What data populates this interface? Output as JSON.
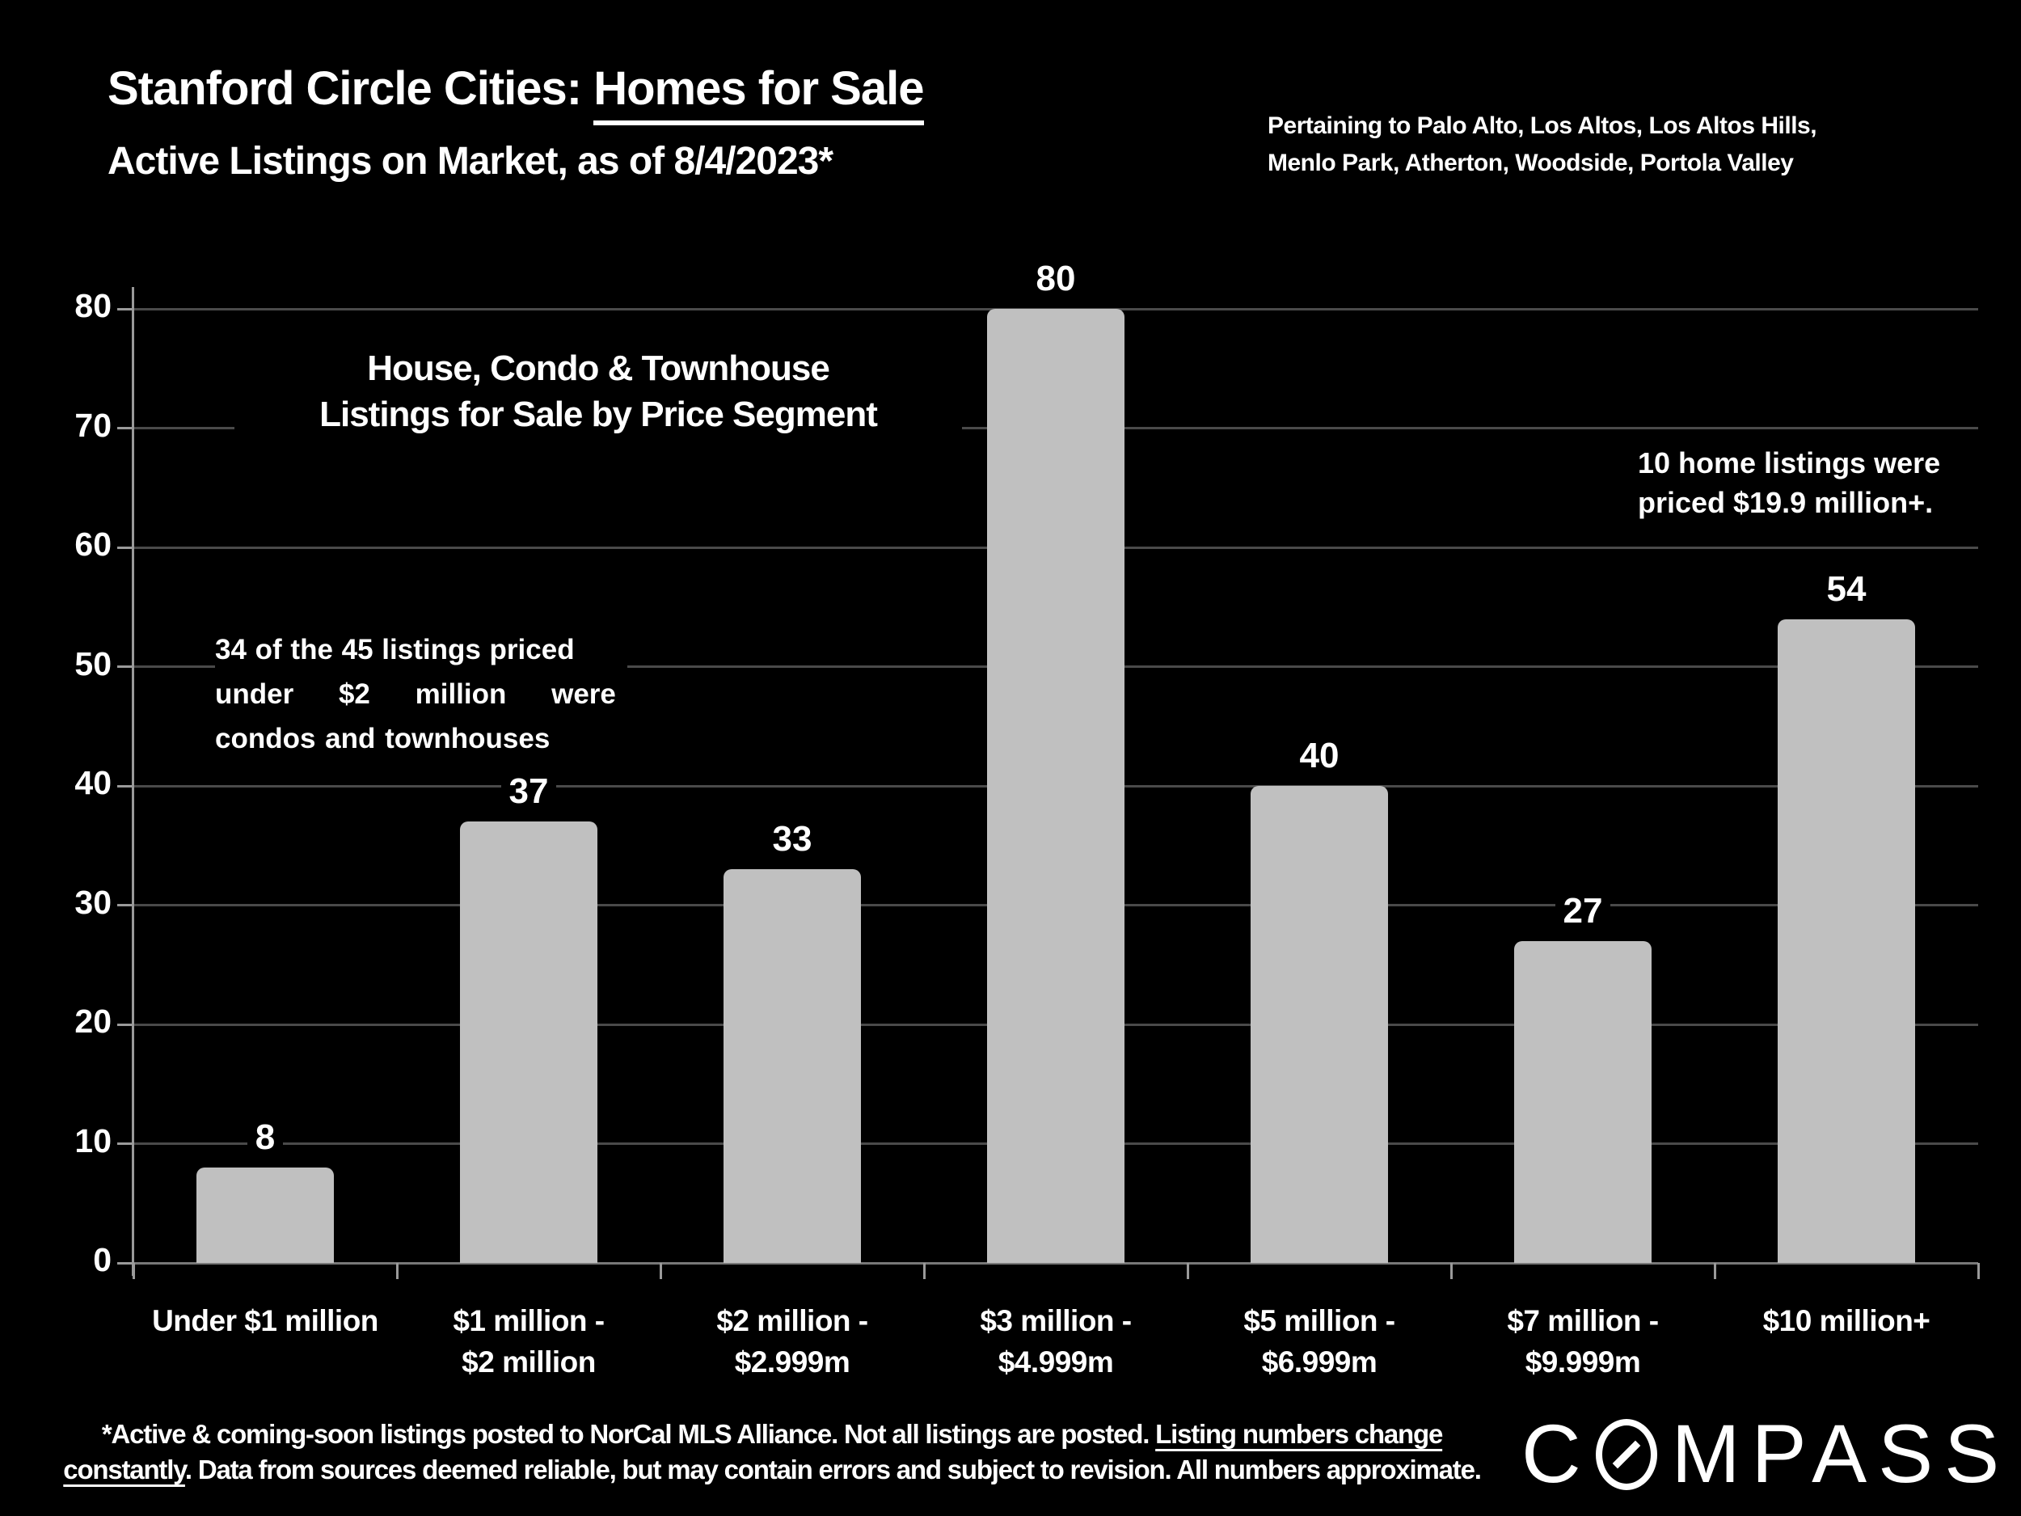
{
  "header": {
    "title_prefix": "Stanford Circle Cities: ",
    "title_emph": "Homes for Sale",
    "subtitle": "Active Listings on Market, as of 8/4/2023*",
    "region_note_line1": "Pertaining to Palo Alto, Los Altos, Los Altos Hills,",
    "region_note_line2": "Menlo Park, Atherton, Woodside, Portola Valley"
  },
  "chart_data": {
    "type": "bar",
    "title": "House, Condo & Townhouse Listings for Sale by Price Segment",
    "title_lines": [
      "House, Condo & Townhouse",
      "Listings for Sale by Price Segment"
    ],
    "categories": [
      "Under $1 million",
      "$1 million - $2 million",
      "$2 million - $2.999m",
      "$3 million - $4.999m",
      "$5 million - $6.999m",
      "$7 million - $9.999m",
      "$10 million+"
    ],
    "category_lines": [
      [
        "Under $1 million"
      ],
      [
        "$1 million -",
        "$2 million"
      ],
      [
        "$2 million -",
        "$2.999m"
      ],
      [
        "$3 million -",
        "$4.999m"
      ],
      [
        "$5 million -",
        "$6.999m"
      ],
      [
        "$7 million -",
        "$9.999m"
      ],
      [
        "$10 million+"
      ]
    ],
    "values": [
      8,
      37,
      33,
      80,
      40,
      27,
      54
    ],
    "yticks": [
      0,
      10,
      20,
      30,
      40,
      50,
      60,
      70,
      80
    ],
    "ylim": [
      0,
      80
    ],
    "xlabel": "",
    "ylabel": "",
    "grid": true,
    "legend": false
  },
  "annotations": {
    "under2m_lines": [
      "34 of the 45 listings priced",
      "under $2 million were",
      "condos and townhouses"
    ],
    "tenplus_lines": [
      "10 home listings were",
      "priced $19.9 million+."
    ]
  },
  "footer": {
    "part1": "*Active & coming-soon listings posted to NorCal MLS Alliance. Not all listings are posted. ",
    "part2_underlined": "Listing numbers change constantly",
    "part3": ". Data from sources deemed reliable, but may contain errors and subject to revision. All numbers approximate."
  },
  "logo": {
    "prefix": "C",
    "suffix": "MPASS",
    "name": "COMPASS"
  },
  "colors": {
    "background": "#000000",
    "text": "#ffffff",
    "bar": "#c0c0c0",
    "gridline": "#4a4a4a",
    "axis": "#9a9a9a"
  }
}
